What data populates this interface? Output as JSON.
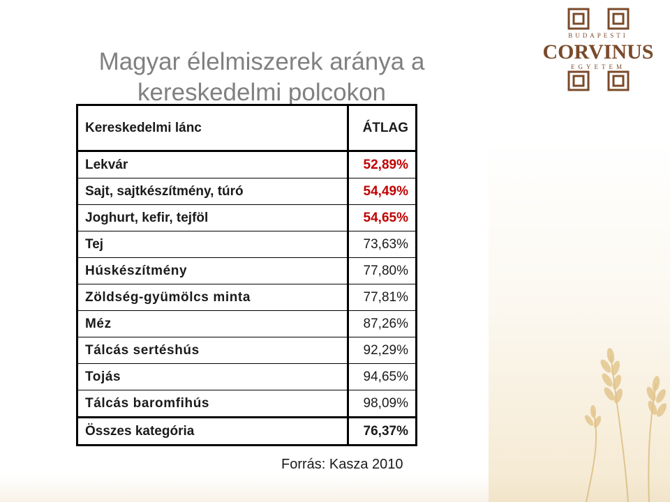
{
  "slide": {
    "title_line1": "Magyar élelmiszerek aránya a",
    "title_line2": "kereskedelmi polcokon",
    "source": "Forrás: Kasza 2010"
  },
  "logo": {
    "top_text": "BUDAPESTI",
    "main_text": "CORVINUS",
    "bottom_text": "EGYETEM"
  },
  "table": {
    "header": {
      "category": "Kereskedelmi lánc",
      "value": "ÁTLAG"
    },
    "rows": [
      {
        "category": "Lekvár",
        "value": "52,89%",
        "highlight": true
      },
      {
        "category": "Sajt, sajtkészítmény, túró",
        "value": "54,49%",
        "highlight": true
      },
      {
        "category": "Joghurt, kefir, tejföl",
        "value": "54,65%",
        "highlight": true
      },
      {
        "category": "Tej",
        "value": "73,63%",
        "highlight": false
      },
      {
        "category": "Húskészítmény",
        "value": "77,80%",
        "highlight": false
      },
      {
        "category": "Zöldség-gyümölcs minta",
        "value": "77,81%",
        "highlight": false
      },
      {
        "category": "Méz",
        "value": "87,26%",
        "highlight": false
      },
      {
        "category": "Tálcás sertéshús",
        "value": "92,29%",
        "highlight": false
      },
      {
        "category": "Tojás",
        "value": "94,65%",
        "highlight": false
      },
      {
        "category": "Tálcás baromfihús",
        "value": "98,09%",
        "highlight": false
      }
    ],
    "total": {
      "category": "Összes kategória",
      "value": "76,37%"
    }
  },
  "colors": {
    "highlight_value": "#c00000",
    "title": "#808080",
    "logo_brown": "#7a4a2a"
  }
}
